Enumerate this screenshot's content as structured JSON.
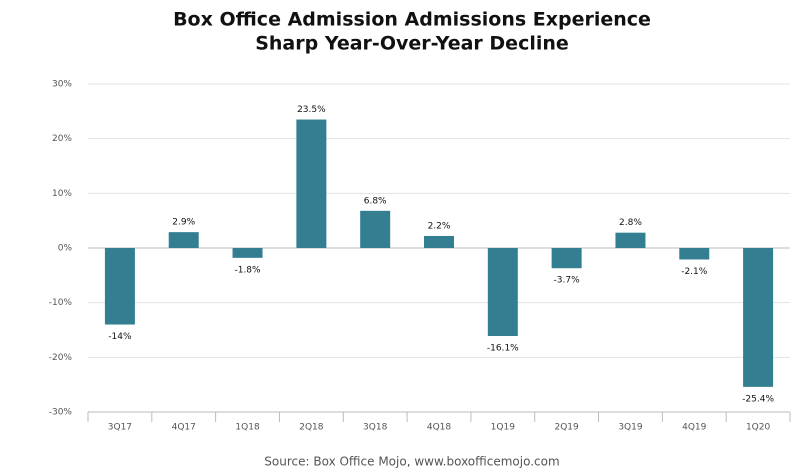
{
  "chart_data": {
    "type": "bar",
    "title": [
      "Box Office Admission Admissions Experience",
      "Sharp Year-Over-Year Decline"
    ],
    "categories": [
      "3Q17",
      "4Q17",
      "1Q18",
      "2Q18",
      "3Q18",
      "4Q18",
      "1Q19",
      "2Q19",
      "3Q19",
      "4Q19",
      "1Q20"
    ],
    "values": [
      -14,
      2.9,
      -1.8,
      23.5,
      6.8,
      2.2,
      -16.1,
      -3.7,
      2.8,
      -2.1,
      -25.4
    ],
    "value_labels": [
      "-14%",
      "2.9%",
      "-1.8%",
      "23.5%",
      "6.8%",
      "2.2%",
      "-16.1%",
      "-3.7%",
      "2.8%",
      "-2.1%",
      "-25.4%"
    ],
    "color": "#337f91",
    "ylim": [
      -30,
      30
    ],
    "yticks": [
      {
        "value": -30,
        "label": "-30%"
      },
      {
        "value": -20,
        "label": "-20%"
      },
      {
        "value": -10,
        "label": "-10%"
      },
      {
        "value": 0,
        "label": "0%"
      },
      {
        "value": 10,
        "label": "10%"
      },
      {
        "value": 20,
        "label": "20%"
      },
      {
        "value": 30,
        "label": "30%"
      }
    ],
    "grid": true,
    "source": "Source: Box Office Mojo, www.boxofficemojo.com"
  }
}
